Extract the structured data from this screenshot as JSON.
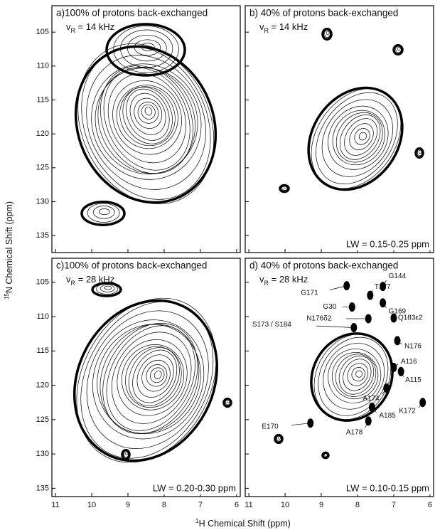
{
  "figure": {
    "ylabel": [
      "15",
      "N Chemical Shift (ppm)"
    ],
    "xlabel": [
      "1",
      "H Chemical Shift (ppm)"
    ]
  },
  "chart_data": [
    {
      "type": "contour",
      "title": "a)100% of protons back-exchanged",
      "spin_rate": {
        "symbol": "v",
        "sub": "R",
        "rest": " = 14 kHz"
      },
      "xlim": [
        11.1,
        5.9
      ],
      "ylim": [
        101.1,
        137.5
      ],
      "xticks": [
        11,
        10,
        9,
        8,
        7,
        6
      ],
      "yticks": [
        105,
        110,
        115,
        120,
        125,
        130,
        135
      ],
      "x_tick_labels": false,
      "y_tick_labels": true
    },
    {
      "type": "contour",
      "title": "b) 40% of protons back-exchanged",
      "spin_rate": {
        "symbol": "v",
        "sub": "R",
        "rest": " = 14 kHz"
      },
      "note": "LW = 0.15-0.25 ppm",
      "xlim": [
        11.1,
        5.9
      ],
      "ylim": [
        101.1,
        137.5
      ],
      "xticks": [
        11,
        10,
        9,
        8,
        7,
        6
      ],
      "yticks": [
        105,
        110,
        115,
        120,
        125,
        130,
        135
      ],
      "x_tick_labels": false,
      "y_tick_labels": false
    },
    {
      "type": "contour",
      "title": "c)100% of protons back-exchanged",
      "spin_rate": {
        "symbol": "v",
        "sub": "R",
        "rest": " = 28 kHz"
      },
      "note": "LW = 0.20-0.30 ppm",
      "xlim": [
        11.1,
        5.9
      ],
      "ylim": [
        101.5,
        136.2
      ],
      "xticks": [
        11,
        10,
        9,
        8,
        7,
        6
      ],
      "yticks": [
        105,
        110,
        115,
        120,
        125,
        130,
        135
      ],
      "x_tick_labels": true,
      "y_tick_labels": true
    },
    {
      "type": "contour",
      "title": "d) 40% of protons back-exchanged",
      "spin_rate": {
        "symbol": "v",
        "sub": "R",
        "rest": " = 28 kHz"
      },
      "note": "LW = 0.10-0.15 ppm",
      "xlim": [
        11.1,
        5.9
      ],
      "ylim": [
        101.5,
        136.2
      ],
      "xticks": [
        11,
        10,
        9,
        8,
        7,
        6
      ],
      "yticks": [
        105,
        110,
        115,
        120,
        125,
        130,
        135
      ],
      "x_tick_labels": true,
      "y_tick_labels": false,
      "peaks": {
        "labels": [
          "G144",
          "T177",
          "G171",
          "G169",
          "G30",
          "N176δ2",
          "Q183ε2",
          "S173 / S184",
          "N176",
          "A116",
          "A115",
          "A174",
          "A185",
          "K172",
          "E170",
          "A178"
        ],
        "x": [
          7.3,
          7.65,
          8.3,
          7.3,
          8.15,
          7.7,
          7.0,
          8.1,
          6.9,
          7.0,
          6.8,
          7.2,
          7.6,
          6.2,
          9.3,
          7.7
        ],
        "y": [
          105.6,
          106.9,
          105.5,
          108.0,
          108.6,
          110.3,
          110.2,
          111.6,
          113.5,
          117.4,
          118.0,
          120.4,
          123.2,
          122.5,
          125.5,
          125.2
        ]
      }
    }
  ]
}
